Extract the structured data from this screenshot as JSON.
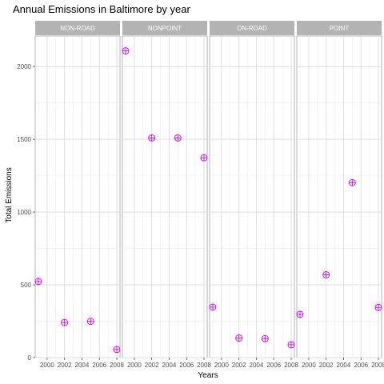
{
  "chart_data": {
    "type": "scatter",
    "title": "Annual Emissions in Baltimore by year",
    "xlabel": "Years",
    "ylabel": "Total Emissions",
    "facets": [
      "NON-ROAD",
      "NONPOINT",
      "ON-ROAD",
      "POINT"
    ],
    "x_ticks": [
      "2000",
      "2002",
      "2004",
      "2006",
      "2008"
    ],
    "y_ticks": [
      0,
      500,
      1000,
      1500,
      2000
    ],
    "xlim": [
      1999,
      2008
    ],
    "ylim": [
      0,
      2210
    ],
    "grid": true,
    "marker_color": "#cc00ff",
    "series": [
      {
        "facet": "NON-ROAD",
        "x": [
          1999,
          2002,
          2005,
          2008
        ],
        "y": [
          522.94,
          240.85,
          248.93,
          55.82
        ]
      },
      {
        "facet": "NONPOINT",
        "x": [
          1999,
          2002,
          2005,
          2008
        ],
        "y": [
          2107.63,
          1509.5,
          1509.5,
          1373.21
        ]
      },
      {
        "facet": "ON-ROAD",
        "x": [
          1999,
          2002,
          2005,
          2008
        ],
        "y": [
          346.82,
          134.31,
          130.43,
          88.28
        ]
      },
      {
        "facet": "POINT",
        "x": [
          1999,
          2002,
          2005,
          2008
        ],
        "y": [
          296.8,
          569.26,
          1202.49,
          344.98
        ]
      }
    ]
  }
}
